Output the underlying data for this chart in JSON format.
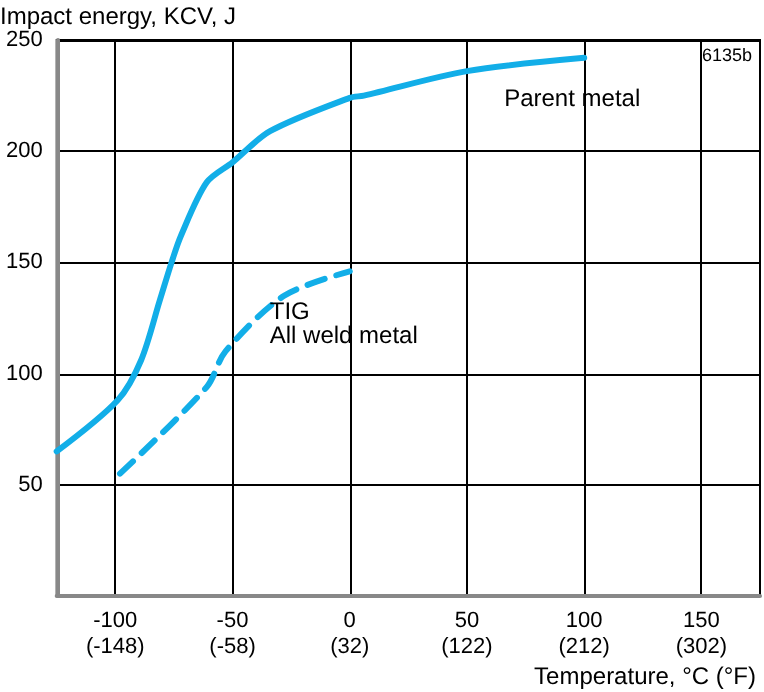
{
  "chart_data": {
    "type": "line",
    "ylabel": "Impact energy, KCV, J",
    "xlabel": "Temperature, °C (°F)",
    "annotations": [
      "6135b"
    ],
    "xlim": [
      -125,
      175
    ],
    "ylim": [
      0,
      250
    ],
    "xticks": [
      -100,
      -50,
      0,
      50,
      100,
      150
    ],
    "x2lim": [
      -193,
      347
    ],
    "x2ticks": [
      {
        "value": -148,
        "label": "(-148)"
      },
      {
        "value": -58,
        "label": "(-58)"
      },
      {
        "value": 32,
        "label": "(32)"
      },
      {
        "value": 122,
        "label": "(122)"
      },
      {
        "value": 212,
        "label": "(212)"
      },
      {
        "value": 302,
        "label": "(302)"
      }
    ],
    "yticks": [
      50,
      100,
      150,
      200,
      250
    ],
    "grid": true,
    "legend": false,
    "marker": "none",
    "series": [
      {
        "name": "Parent metal",
        "color": "#12aee8",
        "line_style": "solid",
        "x": [
          -125,
          -99,
          -89,
          -81,
          -76,
          -72,
          -61,
          -50,
          -34,
          0,
          6,
          50,
          100
        ],
        "values": [
          65,
          88,
          106,
          133,
          150,
          162,
          186,
          195,
          209,
          224,
          225,
          236,
          242
        ]
      },
      {
        "name": "TIG\nAll weld metal",
        "color": "#12aee8",
        "line_style": "dashed",
        "x": [
          -98,
          -61,
          -53,
          -28,
          0
        ],
        "values": [
          55,
          94,
          110,
          135,
          146
        ]
      }
    ]
  }
}
